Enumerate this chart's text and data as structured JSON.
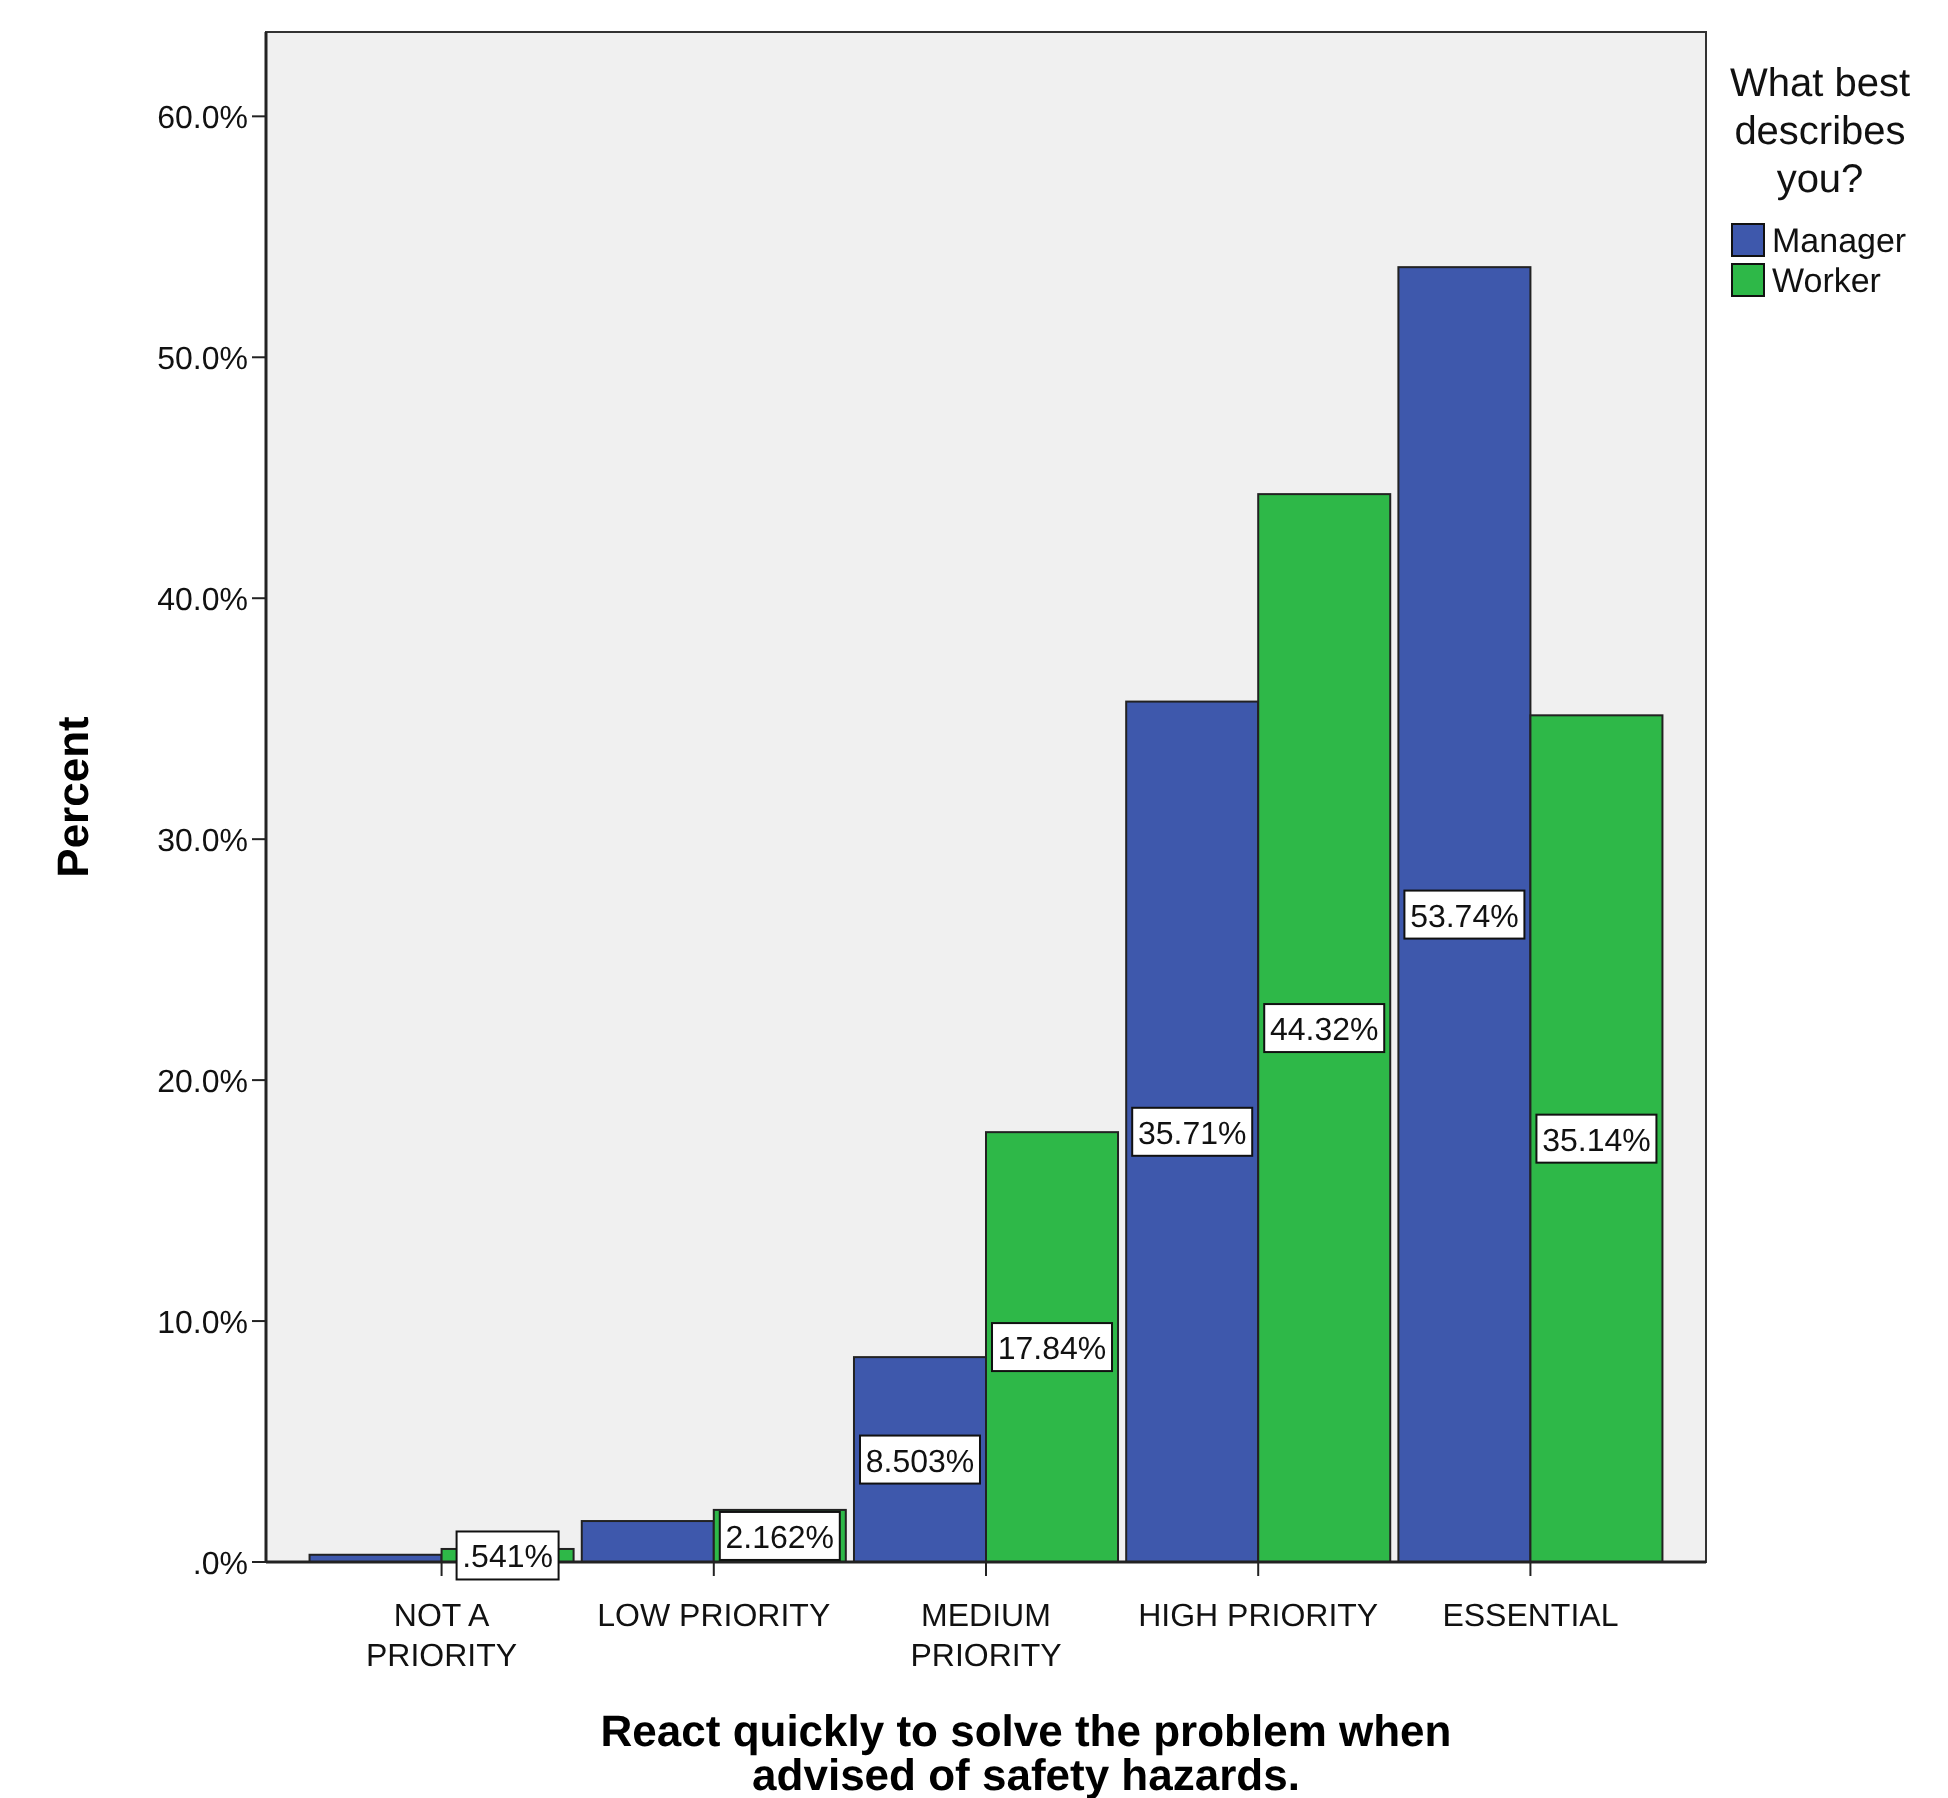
{
  "chart_data": {
    "type": "bar",
    "xlabel": "React quickly to solve the problem when advised of safety hazards.",
    "ylabel": "Percent",
    "legend_title": "What best describes you?",
    "legend": "top right",
    "categories": [
      "NOT A PRIORITY",
      "LOW PRIORITY",
      "MEDIUM PRIORITY",
      "HIGH PRIORITY",
      "ESSENTIAL"
    ],
    "ylim": [
      0,
      63.5
    ],
    "yticks": [
      {
        "value": 0,
        "label": ".0%"
      },
      {
        "value": 10,
        "label": "10.0%"
      },
      {
        "value": 20,
        "label": "20.0%"
      },
      {
        "value": 30,
        "label": "30.0%"
      },
      {
        "value": 40,
        "label": "40.0%"
      },
      {
        "value": 50,
        "label": "50.0%"
      },
      {
        "value": 60,
        "label": "60.0%"
      }
    ],
    "series": [
      {
        "name": "Manager",
        "color": "#3e58ac",
        "values": [
          0.3,
          1.7,
          8.503,
          35.71,
          53.74
        ],
        "value_labels": [
          null,
          null,
          "8.503%",
          "35.71%",
          "53.74%"
        ]
      },
      {
        "name": "Worker",
        "color": "#2eb848",
        "values": [
          0.541,
          2.162,
          17.84,
          44.32,
          35.14
        ],
        "value_labels": [
          ".541%",
          "2.162%",
          "17.84%",
          "44.32%",
          "35.14%"
        ]
      }
    ]
  }
}
